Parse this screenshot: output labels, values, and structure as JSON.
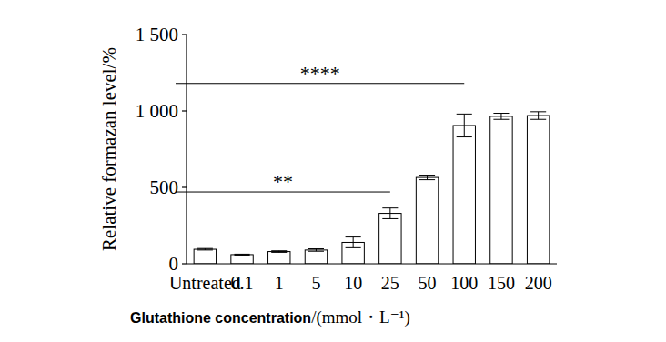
{
  "chart_data": {
    "type": "bar",
    "categories": [
      "Untreated",
      "0.1",
      "1",
      "5",
      "10",
      "25",
      "50",
      "100",
      "150",
      "200"
    ],
    "values": [
      95,
      60,
      80,
      90,
      140,
      330,
      565,
      905,
      965,
      970
    ],
    "errors": [
      5,
      3,
      5,
      8,
      35,
      35,
      15,
      75,
      20,
      25
    ],
    "color": "#ffffff",
    "ylim": [
      0,
      1500
    ],
    "yticks": [
      0,
      500,
      {
        "value": 1000,
        "label": "1 000"
      },
      {
        "value": 1500,
        "label": "1 500"
      }
    ],
    "y_label": "Relative formazan level/%",
    "x_label": "Glutathione concentration/(mmol・L⁻¹)",
    "annotations": [
      {
        "text": "****",
        "from": "Untreated",
        "to": "100",
        "y": 1180
      },
      {
        "text": "**",
        "from": "Untreated",
        "to": "25",
        "y": 470
      }
    ],
    "grid": false
  }
}
